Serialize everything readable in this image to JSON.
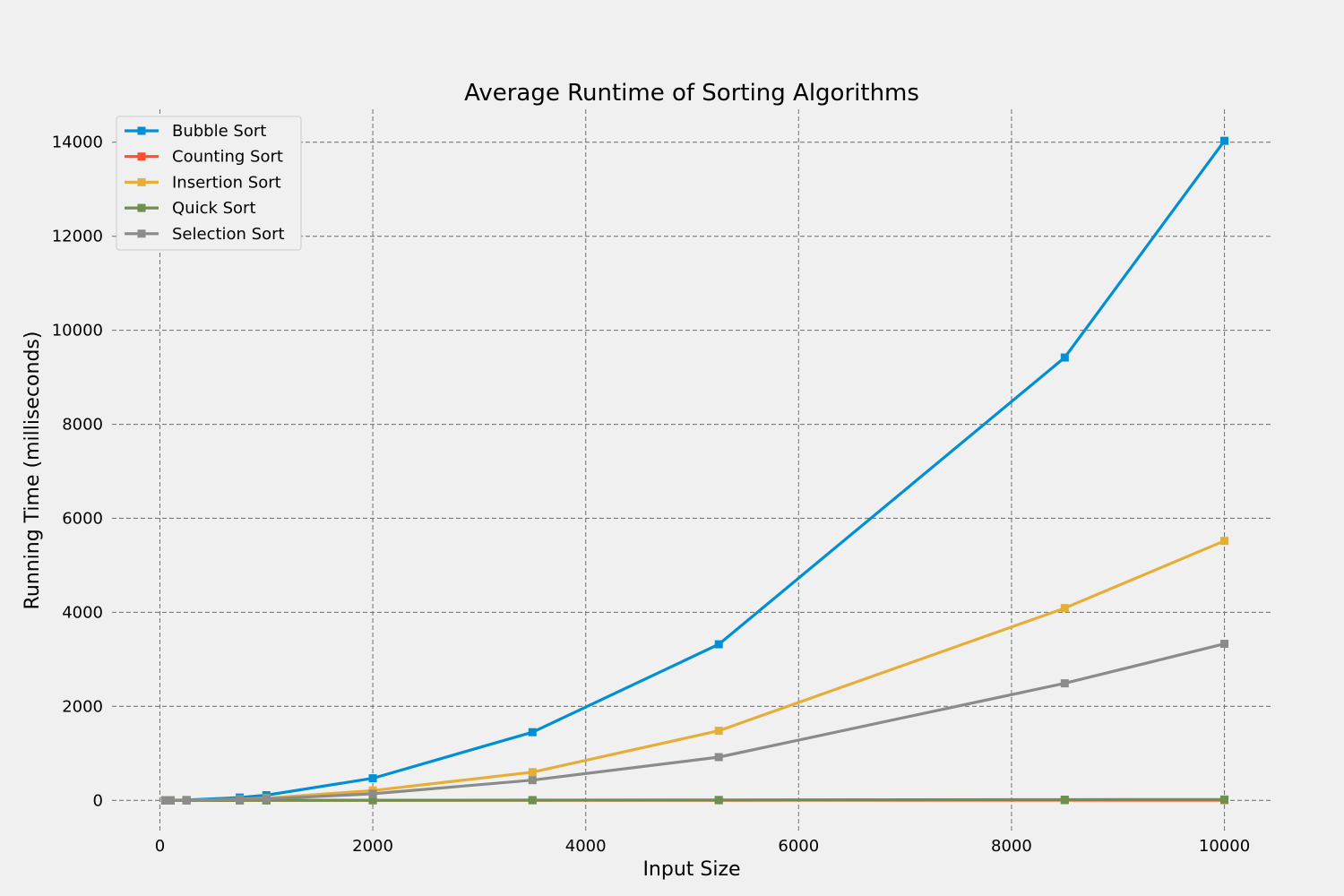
{
  "chart_data": {
    "type": "line",
    "title": "Average Runtime of Sorting Algorithms",
    "xlabel": "Input Size",
    "ylabel": "Running Time (milliseconds)",
    "xlim": [
      -450,
      10450
    ],
    "ylim": [
      -700,
      14700
    ],
    "xticks": [
      0,
      2000,
      4000,
      6000,
      8000,
      10000
    ],
    "yticks": [
      0,
      2000,
      4000,
      6000,
      8000,
      10000,
      12000,
      14000
    ],
    "grid": true,
    "legend_position": "top-left",
    "x": [
      50,
      100,
      250,
      750,
      1000,
      2000,
      3500,
      5250,
      8500,
      10000
    ],
    "series": [
      {
        "name": "Bubble Sort",
        "color": "#008fd5",
        "values": [
          1,
          4,
          8,
          60,
          110,
          470,
          1450,
          3320,
          9420,
          14030
        ]
      },
      {
        "name": "Counting Sort",
        "color": "#fc4f30",
        "values": [
          0.1,
          0.1,
          0.2,
          0.4,
          0.5,
          1,
          2,
          3,
          5,
          6
        ]
      },
      {
        "name": "Insertion Sort",
        "color": "#e5ae38",
        "values": [
          1,
          2,
          4,
          25,
          45,
          210,
          600,
          1480,
          4090,
          5520
        ]
      },
      {
        "name": "Quick Sort",
        "color": "#6d904f",
        "values": [
          0.1,
          0.2,
          0.4,
          1,
          1.5,
          3,
          6,
          9,
          15,
          18
        ]
      },
      {
        "name": "Selection Sort",
        "color": "#8b8b8b",
        "values": [
          1,
          2,
          3,
          20,
          30,
          140,
          430,
          920,
          2490,
          3330
        ]
      }
    ]
  }
}
